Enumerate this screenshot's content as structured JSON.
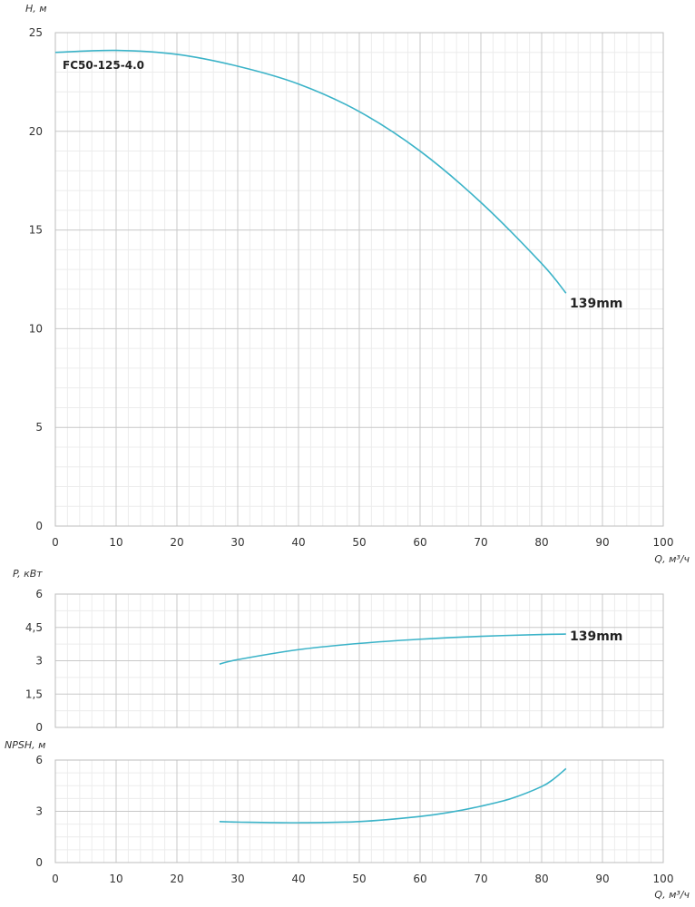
{
  "chart_data": [
    {
      "id": "head",
      "type": "line",
      "xlabel": "Q, м³/ч",
      "ylabel": "H, м",
      "xlim": [
        0,
        100
      ],
      "ylim": [
        0,
        25
      ],
      "x_ticks": [
        0,
        10,
        20,
        30,
        40,
        50,
        60,
        70,
        80,
        90,
        100
      ],
      "y_ticks": [
        0,
        5,
        10,
        15,
        20,
        25
      ],
      "y_tick_labels": [
        "0",
        "5",
        "10",
        "15",
        "20",
        "25"
      ],
      "grid": true,
      "model_label": "FC50-125-4.0",
      "series": [
        {
          "name": "139mm",
          "color": "#3bb3c8",
          "x": [
            0,
            10,
            20,
            30,
            40,
            50,
            60,
            70,
            80,
            84
          ],
          "y": [
            24.0,
            24.1,
            23.9,
            23.3,
            22.4,
            21.0,
            19.0,
            16.4,
            13.3,
            11.8
          ]
        }
      ]
    },
    {
      "id": "power",
      "type": "line",
      "xlabel": "",
      "ylabel": "P, кВт",
      "xlim": [
        0,
        100
      ],
      "ylim": [
        0,
        6
      ],
      "x_ticks": [
        0,
        10,
        20,
        30,
        40,
        50,
        60,
        70,
        80,
        90,
        100
      ],
      "y_ticks": [
        0,
        1.5,
        3,
        4.5,
        6
      ],
      "y_tick_labels": [
        "0",
        "1,5",
        "3",
        "4,5",
        "6"
      ],
      "grid": true,
      "series": [
        {
          "name": "139mm",
          "color": "#3bb3c8",
          "x": [
            27,
            30,
            40,
            50,
            60,
            70,
            80,
            84
          ],
          "y": [
            2.85,
            3.05,
            3.5,
            3.78,
            3.97,
            4.1,
            4.18,
            4.2
          ]
        }
      ]
    },
    {
      "id": "npsh",
      "type": "line",
      "xlabel": "Q, м³/ч",
      "ylabel": "NPSH, м",
      "xlim": [
        0,
        100
      ],
      "ylim": [
        0,
        6
      ],
      "x_ticks": [
        0,
        10,
        20,
        30,
        40,
        50,
        60,
        70,
        80,
        90,
        100
      ],
      "y_ticks": [
        0,
        3,
        6
      ],
      "y_tick_labels": [
        "0",
        "3",
        "6"
      ],
      "grid": true,
      "series": [
        {
          "name": "",
          "color": "#3bb3c8",
          "x": [
            27,
            30,
            40,
            50,
            60,
            65,
            70,
            75,
            80,
            82,
            84
          ],
          "y": [
            2.4,
            2.37,
            2.33,
            2.4,
            2.7,
            2.95,
            3.3,
            3.75,
            4.45,
            4.9,
            5.5
          ]
        }
      ]
    }
  ]
}
